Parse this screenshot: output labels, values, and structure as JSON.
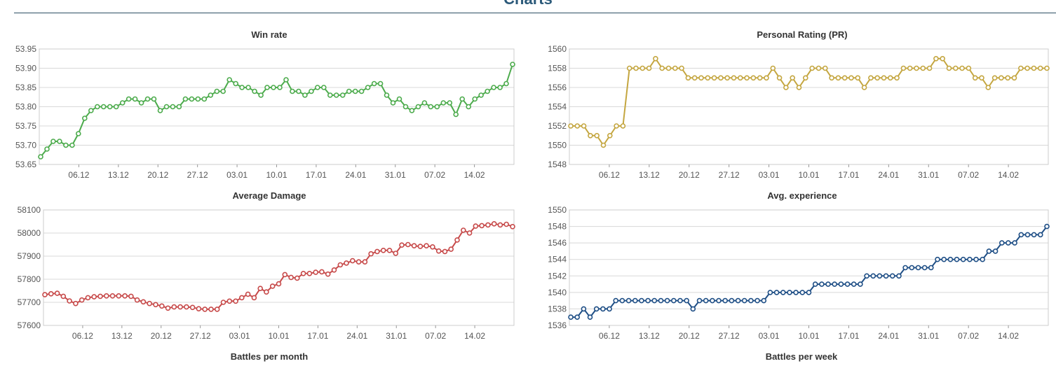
{
  "page": {
    "heading": "Charts",
    "footer_left": "Battles per month",
    "footer_right": "Battles per week"
  },
  "chart_data": [
    {
      "type": "line",
      "title": "Win rate",
      "color": "#4cab4c",
      "xlabel": "",
      "ylabel": "",
      "ylim": [
        53.65,
        53.95
      ],
      "yticks": [
        "53.95",
        "53.90",
        "53.85",
        "53.80",
        "53.75",
        "53.70",
        "53.65"
      ],
      "xticks": [
        "06.12",
        "13.12",
        "20.12",
        "27.12",
        "03.01",
        "10.01",
        "17.01",
        "24.01",
        "31.01",
        "07.02",
        "14.02"
      ],
      "grid": true,
      "x_start": "2015-11-29",
      "x_end": "2016-02-21",
      "values": [
        53.67,
        53.69,
        53.71,
        53.71,
        53.7,
        53.7,
        53.73,
        53.77,
        53.79,
        53.8,
        53.8,
        53.8,
        53.8,
        53.81,
        53.82,
        53.82,
        53.81,
        53.82,
        53.82,
        53.79,
        53.8,
        53.8,
        53.8,
        53.82,
        53.82,
        53.82,
        53.82,
        53.83,
        53.84,
        53.84,
        53.87,
        53.86,
        53.85,
        53.85,
        53.84,
        53.83,
        53.85,
        53.85,
        53.85,
        53.87,
        53.84,
        53.84,
        53.83,
        53.84,
        53.85,
        53.85,
        53.83,
        53.83,
        53.83,
        53.84,
        53.84,
        53.84,
        53.85,
        53.86,
        53.86,
        53.83,
        53.81,
        53.82,
        53.8,
        53.79,
        53.8,
        53.81,
        53.8,
        53.8,
        53.81,
        53.81,
        53.78,
        53.82,
        53.8,
        53.82,
        53.83,
        53.84,
        53.85,
        53.85,
        53.86,
        53.91
      ]
    },
    {
      "type": "line",
      "title": "Personal Rating (PR)",
      "color": "#c4a640",
      "xlabel": "",
      "ylabel": "",
      "ylim": [
        1548,
        1560
      ],
      "yticks": [
        "1560",
        "1558",
        "1556",
        "1554",
        "1552",
        "1550",
        "1548"
      ],
      "xticks": [
        "06.12",
        "13.12",
        "20.12",
        "27.12",
        "03.01",
        "10.01",
        "17.01",
        "24.01",
        "31.01",
        "07.02",
        "14.02"
      ],
      "grid": true,
      "x_start": "2015-11-29",
      "x_end": "2016-02-21",
      "values": [
        1552,
        1552,
        1552,
        1551,
        1551,
        1550,
        1551,
        1552,
        1552,
        1558,
        1558,
        1558,
        1558,
        1559,
        1558,
        1558,
        1558,
        1558,
        1557,
        1557,
        1557,
        1557,
        1557,
        1557,
        1557,
        1557,
        1557,
        1557,
        1557,
        1557,
        1557,
        1558,
        1557,
        1556,
        1557,
        1556,
        1557,
        1558,
        1558,
        1558,
        1557,
        1557,
        1557,
        1557,
        1557,
        1556,
        1557,
        1557,
        1557,
        1557,
        1557,
        1558,
        1558,
        1558,
        1558,
        1558,
        1559,
        1559,
        1558,
        1558,
        1558,
        1558,
        1557,
        1557,
        1556,
        1557,
        1557,
        1557,
        1557,
        1558,
        1558,
        1558,
        1558,
        1558
      ]
    },
    {
      "type": "line",
      "title": "Average Damage",
      "color": "#c74a4a",
      "xlabel": "",
      "ylabel": "",
      "ylim": [
        57600,
        58100
      ],
      "yticks": [
        "58100",
        "58000",
        "57900",
        "57800",
        "57700",
        "57600"
      ],
      "xticks": [
        "06.12",
        "13.12",
        "20.12",
        "27.12",
        "03.01",
        "10.01",
        "17.01",
        "24.01",
        "31.01",
        "07.02",
        "14.02"
      ],
      "grid": true,
      "x_start": "2015-11-29",
      "x_end": "2016-02-21",
      "values": [
        57733,
        57737,
        57739,
        57726,
        57706,
        57695,
        57710,
        57720,
        57724,
        57726,
        57728,
        57728,
        57728,
        57728,
        57726,
        57710,
        57702,
        57695,
        57690,
        57684,
        57675,
        57680,
        57680,
        57680,
        57678,
        57672,
        57670,
        57670,
        57670,
        57700,
        57705,
        57705,
        57720,
        57735,
        57720,
        57760,
        57745,
        57770,
        57780,
        57820,
        57808,
        57805,
        57825,
        57825,
        57830,
        57832,
        57822,
        57840,
        57862,
        57870,
        57880,
        57875,
        57875,
        57910,
        57920,
        57925,
        57925,
        57912,
        57948,
        57950,
        57945,
        57942,
        57945,
        57940,
        57922,
        57920,
        57930,
        57970,
        58012,
        58000,
        58030,
        58032,
        58035,
        58040,
        58035,
        58038,
        58028
      ]
    },
    {
      "type": "line",
      "title": "Avg. experience",
      "color": "#1f4f86",
      "xlabel": "",
      "ylabel": "",
      "ylim": [
        1536,
        1550
      ],
      "yticks": [
        "1550",
        "1548",
        "1546",
        "1544",
        "1542",
        "1540",
        "1538",
        "1536"
      ],
      "xticks": [
        "06.12",
        "13.12",
        "20.12",
        "27.12",
        "03.01",
        "10.01",
        "17.01",
        "24.01",
        "31.01",
        "07.02",
        "14.02"
      ],
      "grid": true,
      "x_start": "2015-11-29",
      "x_end": "2016-02-21",
      "values": [
        1537,
        1537,
        1538,
        1537,
        1538,
        1538,
        1538,
        1539,
        1539,
        1539,
        1539,
        1539,
        1539,
        1539,
        1539,
        1539,
        1539,
        1539,
        1539,
        1538,
        1539,
        1539,
        1539,
        1539,
        1539,
        1539,
        1539,
        1539,
        1539,
        1539,
        1539,
        1540,
        1540,
        1540,
        1540,
        1540,
        1540,
        1540,
        1541,
        1541,
        1541,
        1541,
        1541,
        1541,
        1541,
        1541,
        1542,
        1542,
        1542,
        1542,
        1542,
        1542,
        1543,
        1543,
        1543,
        1543,
        1543,
        1544,
        1544,
        1544,
        1544,
        1544,
        1544,
        1544,
        1544,
        1545,
        1545,
        1546,
        1546,
        1546,
        1547,
        1547,
        1547,
        1547,
        1548
      ]
    }
  ]
}
